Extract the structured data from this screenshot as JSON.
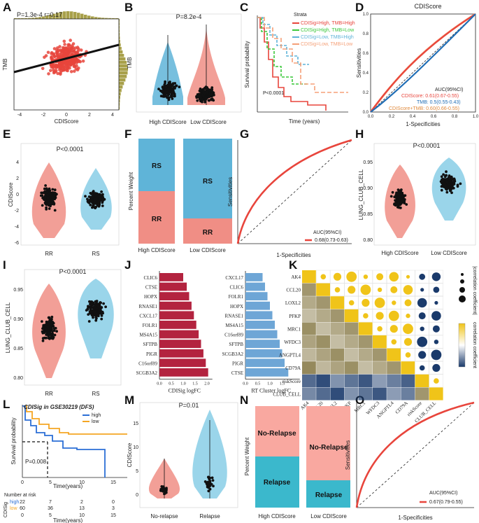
{
  "panels": [
    "A",
    "B",
    "C",
    "D",
    "E",
    "F",
    "G",
    "H",
    "I",
    "J",
    "K",
    "L",
    "M",
    "N",
    "O"
  ],
  "colors": {
    "red": "#e8453c",
    "blue": "#5fb4d8",
    "salmon": "#f08e85",
    "lightblue": "#8fd0e8",
    "green": "#3cc83c",
    "orange": "#f5a078",
    "navy": "#1a3a6b",
    "gold": "#f0c419"
  },
  "chart_data": [
    {
      "id": "A",
      "type": "scatter",
      "stat": "P=1.3e-4 r=0.17",
      "xlabel": "CDIScore",
      "ylabel": "TMB",
      "xticks": [
        "-4",
        "-2",
        "0",
        "2",
        "4"
      ],
      "yticks": [
        "-4",
        "-2",
        "0",
        "2",
        "4",
        "6"
      ]
    },
    {
      "id": "B",
      "type": "violin",
      "stat": "P=8.2e-4",
      "ylabel": "TMB",
      "categories": [
        "High CDIScore",
        "Low CDIScore"
      ]
    },
    {
      "id": "C",
      "type": "line",
      "title": "Strata",
      "legend": [
        "CDISig=High, TMB=High",
        "CDISig=High, TMB=Low",
        "CDISig=Low, TMB=High",
        "CDISig=Low, TMB=Low"
      ],
      "stat": "P<0.0001",
      "xlabel": "Time (years)",
      "ylabel": "Survival probability"
    },
    {
      "id": "D",
      "type": "line",
      "title": "CDIScore",
      "xlabel": "1-Specificities",
      "ylabel": "Sensitivities",
      "auc_title": "AUC(95%CI)",
      "legend": [
        "CDIScore: 0.61(0.67-0.55)",
        "TMB: 0.5(0.55-0.43)",
        "CDIScore+TMB: 0.60(0.66-0.55)"
      ],
      "xticks": [
        "0.0",
        "0.2",
        "0.4",
        "0.6",
        "0.8",
        "1.0"
      ],
      "yticks": [
        "0.0",
        "0.2",
        "0.4",
        "0.6",
        "0.8",
        "1.0"
      ]
    },
    {
      "id": "E",
      "type": "violin",
      "stat": "P<0.0001",
      "ylabel": "CDIScore",
      "categories": [
        "RR",
        "RS"
      ],
      "yticks": [
        "-6",
        "-4",
        "-2",
        "0",
        "2",
        "4"
      ]
    },
    {
      "id": "F",
      "type": "bar",
      "ylabel": "Percent Weight",
      "categories": [
        "High CDIScore",
        "Low CDIScore"
      ],
      "series": [
        {
          "name": "RR",
          "values": [
            0.5,
            0.25
          ]
        },
        {
          "name": "RS",
          "values": [
            0.5,
            0.75
          ]
        }
      ]
    },
    {
      "id": "G",
      "type": "line",
      "xlabel": "1-Specificities",
      "ylabel": "Sensitivities",
      "auc_title": "AUC(95%CI)",
      "legend": [
        "0.68(0.73-0.63)"
      ]
    },
    {
      "id": "H",
      "type": "violin",
      "stat": "P<0.0001",
      "ylabel": "LUNG_CLUB_CELL",
      "categories": [
        "High CDIScore",
        "Low CDIScore"
      ],
      "yticks": [
        "0.80",
        "0.85",
        "0.90",
        "0.95"
      ]
    },
    {
      "id": "I",
      "type": "violin",
      "stat": "P<0.0001",
      "ylabel": "LUNG_CLUB_CELL",
      "categories": [
        "RR",
        "RS"
      ],
      "yticks": [
        "0.80",
        "0.85",
        "0.90",
        "0.95"
      ]
    },
    {
      "id": "J",
      "type": "bar",
      "subplots": [
        {
          "xlabel": "CDISig logFC",
          "categories": [
            "CLIC6",
            "CTSE",
            "HOPX",
            "RNASE1",
            "CXCL17",
            "FOLR1",
            "MS4A15",
            "SFTPB",
            "PIGR",
            "C16orf89",
            "SCGB3A2"
          ],
          "values": [
            1.0,
            1.15,
            1.25,
            1.35,
            1.45,
            1.55,
            1.65,
            1.75,
            1.85,
            1.95,
            2.05
          ],
          "xticks": [
            "0.0",
            "0.5",
            "1.0",
            "1.5",
            "2.0"
          ]
        },
        {
          "xlabel": "RT Cluster logFC",
          "categories": [
            "CXCL17",
            "CLIC6",
            "FOLR1",
            "HOPX",
            "RNASE1",
            "MS4A15",
            "C16orf89",
            "SFTPB",
            "SCGB3A2",
            "PIGR",
            "CTSE"
          ],
          "values": [
            0.7,
            0.8,
            0.9,
            1.0,
            1.1,
            1.2,
            1.3,
            1.4,
            1.5,
            1.6,
            1.75
          ],
          "xticks": [
            "0.0",
            "0.5",
            "1.0",
            "1.5"
          ]
        }
      ]
    },
    {
      "id": "K",
      "type": "heatmap",
      "rows": [
        "AK4",
        "CCL20",
        "LOXL2",
        "PFKP",
        "MRC1",
        "WFDC3",
        "ANGPTL4",
        "CD79A",
        "riskScore",
        "CLUB_CELL"
      ],
      "legend": [
        "|correlation coefficient|",
        "correlation coefficient"
      ]
    },
    {
      "id": "L",
      "type": "line",
      "title": "CDISig in GSE30219 (DFS)",
      "legend": [
        "high",
        "low"
      ],
      "stat": "P=0.008",
      "xlabel": "Time(years)",
      "ylabel": "Survival probability",
      "risk_title": "Number at risk",
      "risk_label": "CDISig",
      "risk_high": [
        "22",
        "7",
        "2",
        "0"
      ],
      "risk_low": [
        "60",
        "36",
        "13",
        "3"
      ],
      "xticks": [
        "0",
        "5",
        "10",
        "15"
      ],
      "yticks": [
        "0.00",
        "0.25",
        "0.50",
        "0.75",
        "1.00"
      ]
    },
    {
      "id": "M",
      "type": "violin",
      "stat": "P=0.01",
      "ylabel": "CDIScore",
      "categories": [
        "No-relapse",
        "Relapse"
      ],
      "yticks": [
        "0",
        "5",
        "10",
        "15"
      ]
    },
    {
      "id": "N",
      "type": "bar",
      "ylabel": "Percent Weight",
      "categories": [
        "High CDIScore",
        "Low CDIScore"
      ],
      "series": [
        {
          "name": "Relapse",
          "values": [
            0.5,
            0.27
          ]
        },
        {
          "name": "No-Relapse",
          "values": [
            0.5,
            0.73
          ]
        }
      ]
    },
    {
      "id": "O",
      "type": "line",
      "xlabel": "1-Specificities",
      "ylabel": "Sensitivities",
      "auc_title": "AUC(95%CI)",
      "legend": [
        "0.67(0.79-0.55)"
      ]
    }
  ]
}
